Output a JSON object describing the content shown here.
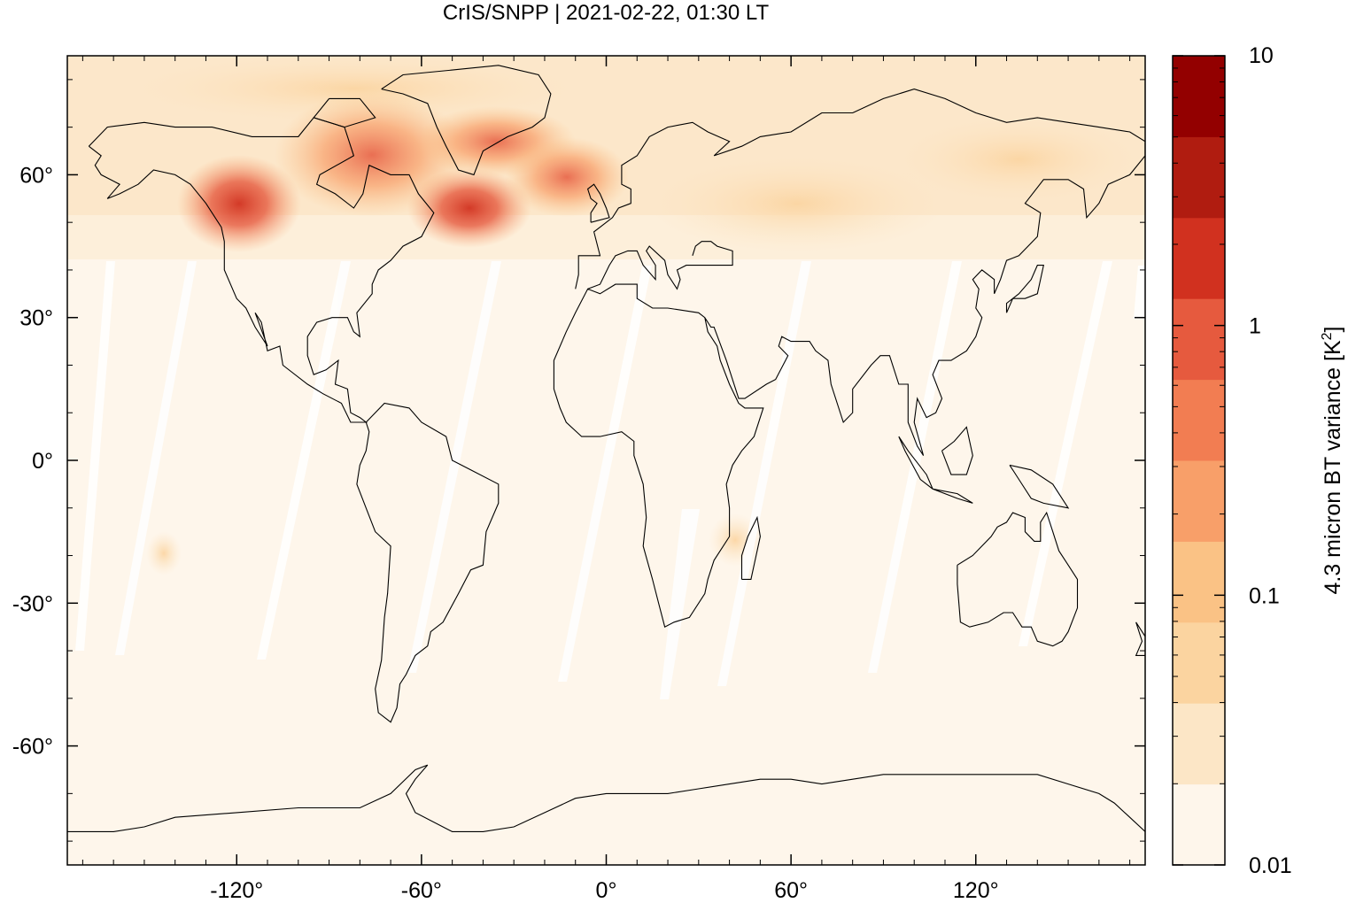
{
  "title": "CrIS/SNPP | 2021-02-22, 01:30 LT",
  "map": {
    "projection": "equirectangular",
    "lon_range": [
      -175,
      175
    ],
    "lat_range": [
      -85,
      85
    ],
    "x_ticks": [
      {
        "value": -120,
        "label": "-120°"
      },
      {
        "value": -60,
        "label": "-60°"
      },
      {
        "value": 0,
        "label": "0°"
      },
      {
        "value": 60,
        "label": "60°"
      },
      {
        "value": 120,
        "label": "120°"
      }
    ],
    "y_ticks": [
      {
        "value": 60,
        "label": "60°"
      },
      {
        "value": 30,
        "label": "30°"
      },
      {
        "value": 0,
        "label": "0°"
      },
      {
        "value": -30,
        "label": "-30°"
      },
      {
        "value": -60,
        "label": "-60°"
      }
    ],
    "background_color": "#fef6eb",
    "coastline_color": "#000000"
  },
  "colorbar": {
    "label_text": "4.3 micron BT variance [K",
    "label_sup": "2",
    "label_close": "]",
    "scale": "log",
    "range": [
      0.01,
      10
    ],
    "tick_labels": [
      {
        "value": 10,
        "label": "10"
      },
      {
        "value": 1,
        "label": "1"
      },
      {
        "value": 0.1,
        "label": "0.1"
      },
      {
        "value": 0.01,
        "label": "0.01"
      }
    ],
    "colors": [
      "#fef6eb",
      "#fce6c6",
      "#fbd4a0",
      "#fac285",
      "#f89f69",
      "#f27d52",
      "#e65a3e",
      "#d1311f",
      "#b01c10",
      "#930000"
    ]
  },
  "chart_data": {
    "type": "heatmap",
    "title": "CrIS/SNPP | 2021-02-22, 01:30 LT",
    "xlabel": "",
    "ylabel": "",
    "colorbar_label": "4.3 micron BT variance [K^2]",
    "xlim": [
      -175,
      175
    ],
    "ylim": [
      -85,
      85
    ],
    "color_scale": "log",
    "color_range": [
      0.01,
      10
    ],
    "hotspots": [
      {
        "region": "Western North America",
        "lon": -115,
        "lat": 52,
        "value": 3
      },
      {
        "region": "Hudson Bay / Eastern Canada",
        "lon": -65,
        "lat": 60,
        "value": 1
      },
      {
        "region": "Labrador Sea",
        "lon": -45,
        "lat": 55,
        "value": 1.5
      },
      {
        "region": "Southern Greenland",
        "lon": -42,
        "lat": 68,
        "value": 1.5
      },
      {
        "region": "North Atlantic",
        "lon": -25,
        "lat": 60,
        "value": 0.5
      }
    ],
    "background_value": 0.01
  }
}
